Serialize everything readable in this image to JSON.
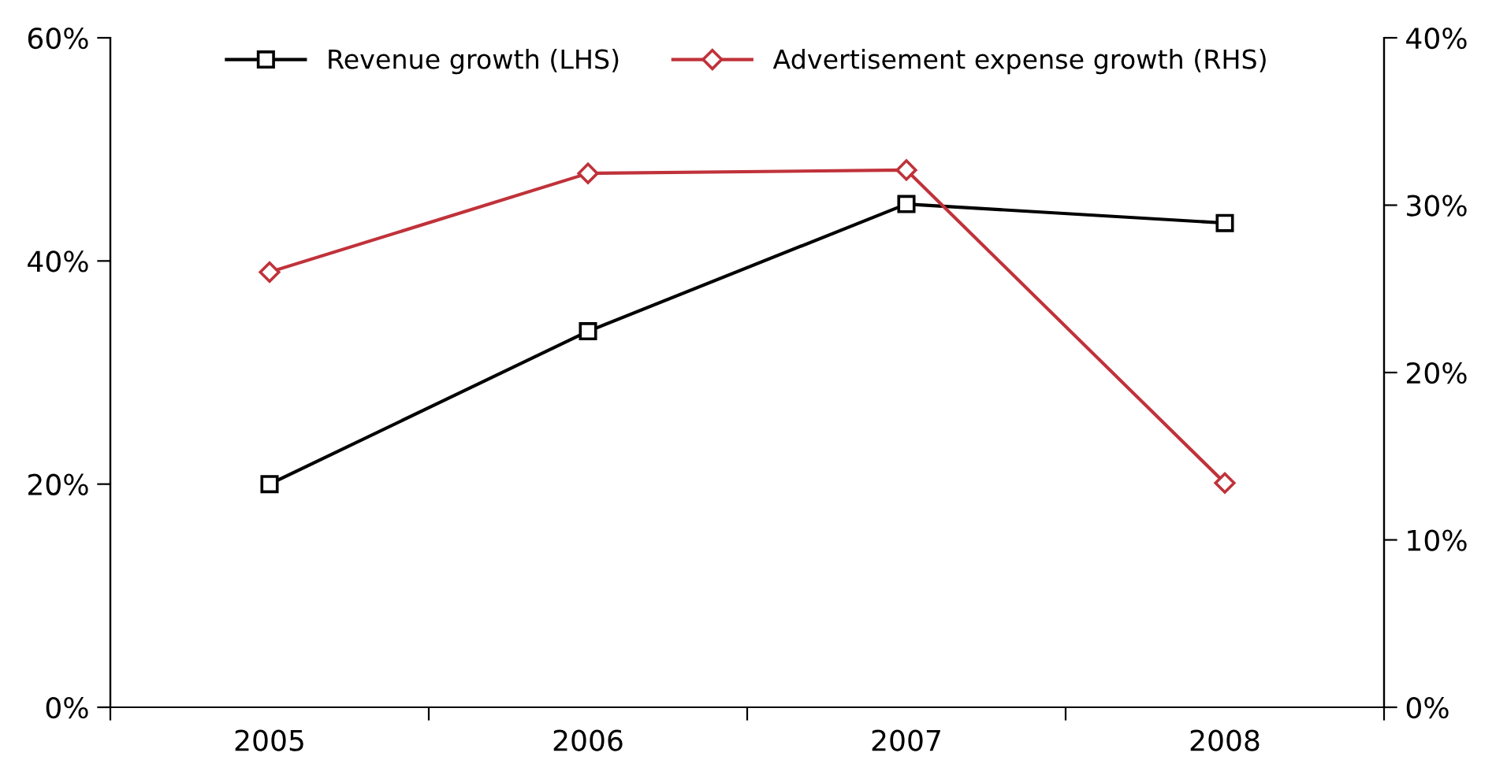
{
  "chart_data": {
    "type": "line",
    "categories": [
      "2005",
      "2006",
      "2007",
      "2008"
    ],
    "series": [
      {
        "name": "Revenue growth (LHS)",
        "color": "#000000",
        "values": [
          20,
          33.7,
          45.1,
          43.4
        ],
        "marker": "square"
      },
      {
        "name": "Advertisement expense growth (RHS)",
        "color": "#c0323a",
        "values": [
          26,
          31.9,
          32.1,
          13.4
        ],
        "marker": "diamond",
        "axis": "y2"
      }
    ],
    "ylim": [
      0,
      60
    ],
    "yticks": [
      {
        "value": 0,
        "label": "0%"
      },
      {
        "value": 20,
        "label": "20%"
      },
      {
        "value": 40,
        "label": "40%"
      },
      {
        "value": 60,
        "label": "60%"
      }
    ],
    "y2lim": [
      0,
      40
    ],
    "y2ticks": [
      {
        "value": 0,
        "label": "0%"
      },
      {
        "value": 10,
        "label": "10%"
      },
      {
        "value": 20,
        "label": "20%"
      },
      {
        "value": 30,
        "label": "30%"
      },
      {
        "value": 40,
        "label": "40%"
      }
    ],
    "grid": false,
    "legend": "top",
    "line_style": "solid"
  }
}
